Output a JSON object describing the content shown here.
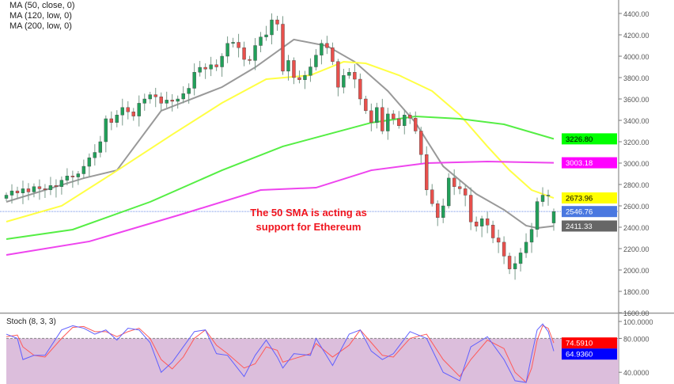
{
  "legend": [
    "MA (50, close, 0)",
    "MA (120, low, 0)",
    "MA (200, low, 0)"
  ],
  "annotation": [
    "The 50 SMA is acting as",
    "support for Ethereum"
  ],
  "stoch_title": "Stoch (8, 3, 3)",
  "colors": {
    "up": "#21a05a",
    "down": "#e8504c",
    "ma_gray": "#999999",
    "ma_yellow": "#ffff44",
    "ma_green": "#55ee44",
    "ma_magenta": "#ee44ee",
    "stoch_k": "#6060ff",
    "stoch_d": "#ff5a5a",
    "stoch_band": "#dcbedc",
    "last_price_line": "#6d8fe6"
  },
  "chart_data": [
    {
      "type": "candlestick",
      "ylim": [
        1600,
        4400
      ],
      "yticks": [
        "4400.00",
        "4200.00",
        "4000.00",
        "3800.00",
        "3600.00",
        "3400.00",
        "3200.00",
        "3000.00",
        "2800.00",
        "2600.00",
        "2400.00",
        "2200.00",
        "2000.00",
        "1800.00",
        "1600.00"
      ],
      "closes": [
        2700,
        2740,
        2720,
        2760,
        2730,
        2780,
        2760,
        2750,
        2790,
        2780,
        2840,
        2880,
        2870,
        2900,
        2970,
        3050,
        3100,
        3200,
        3415,
        3380,
        3450,
        3520,
        3480,
        3440,
        3560,
        3600,
        3640,
        3620,
        3560,
        3590,
        3578,
        3600,
        3650,
        3700,
        3850,
        3896,
        3880,
        3920,
        3900,
        4000,
        4120,
        4130,
        4080,
        3970,
        3960,
        4100,
        4180,
        4200,
        4340,
        4300,
        3860,
        3960,
        3800,
        3780,
        3820,
        3900,
        4010,
        4120,
        4080,
        3950,
        3710,
        3820,
        3850,
        3785,
        3600,
        3490,
        3380,
        3520,
        3300,
        3460,
        3415,
        3350,
        3450,
        3420,
        3300,
        3080,
        2750,
        2620,
        2490,
        2600,
        2860,
        2780,
        2760,
        2700,
        2450,
        2410,
        2480,
        2420,
        2300,
        2260,
        2130,
        2010,
        2060,
        2160,
        2260,
        2380,
        2640,
        2700,
        2700,
        2546.76
      ],
      "series": [
        {
          "name": "MA (50, close, 0)",
          "color": "ma_gray",
          "points": [
            [
              0,
              2637
            ],
            [
              14,
              2859
            ],
            [
              20,
              2933
            ],
            [
              28,
              3489
            ],
            [
              39,
              3711
            ],
            [
              45,
              3896
            ],
            [
              52,
              4156
            ],
            [
              58,
              4096
            ],
            [
              63,
              3948
            ],
            [
              69,
              3674
            ],
            [
              74,
              3378
            ],
            [
              79,
              2970
            ],
            [
              85,
              2711
            ],
            [
              90,
              2563
            ],
            [
              94,
              2415
            ],
            [
              96,
              2393
            ],
            [
              99,
              2411.33
            ]
          ],
          "last": "2411.33"
        },
        {
          "name": "MA (120, low, 0)",
          "color": "ma_yellow",
          "points": [
            [
              0,
              2452
            ],
            [
              10,
              2600
            ],
            [
              19,
              2896
            ],
            [
              30,
              3267
            ],
            [
              39,
              3563
            ],
            [
              47,
              3785
            ],
            [
              55,
              3822
            ],
            [
              61,
              3948
            ],
            [
              65,
              3933
            ],
            [
              71,
              3822
            ],
            [
              77,
              3674
            ],
            [
              82,
              3452
            ],
            [
              87,
              3156
            ],
            [
              91,
              2933
            ],
            [
              95,
              2748
            ],
            [
              99,
              2673.96
            ]
          ],
          "last": "2673.96"
        },
        {
          "name": "MA (200, low, 0)",
          "color": "ma_green",
          "points": [
            [
              0,
              2289
            ],
            [
              12,
              2378
            ],
            [
              26,
              2637
            ],
            [
              39,
              2933
            ],
            [
              50,
              3156
            ],
            [
              58,
              3267
            ],
            [
              66,
              3378
            ],
            [
              74,
              3437
            ],
            [
              82,
              3415
            ],
            [
              90,
              3363
            ],
            [
              99,
              3226.8
            ]
          ],
          "last": "3226.80"
        },
        {
          "name": "",
          "color": "ma_magenta",
          "points": [
            [
              0,
              2141
            ],
            [
              15,
              2267
            ],
            [
              32,
              2526
            ],
            [
              46,
              2748
            ],
            [
              56,
              2770
            ],
            [
              66,
              2933
            ],
            [
              76,
              3000
            ],
            [
              87,
              3015
            ],
            [
              99,
              3003.18
            ]
          ],
          "last": "3003.18"
        }
      ],
      "last_price": "2546.76"
    },
    {
      "type": "line",
      "title": "Stoch (8, 3, 3)",
      "ylim": [
        25,
        100
      ],
      "yticks": [
        "100.0000",
        "80.0000",
        "40.0000"
      ],
      "band": [
        20,
        80
      ],
      "x": [
        0,
        2,
        3,
        5,
        7,
        10,
        12,
        14,
        16,
        18,
        20,
        22,
        24,
        26,
        28,
        30,
        32,
        34,
        36,
        38,
        40,
        43,
        45,
        47,
        49,
        50,
        52,
        55,
        56,
        59,
        62,
        64,
        66,
        68,
        70,
        73,
        76,
        79,
        82,
        84,
        87,
        90,
        92,
        94,
        95,
        96,
        97,
        98,
        99
      ],
      "k": [
        85,
        80,
        55,
        60,
        60,
        90,
        95,
        92,
        85,
        90,
        78,
        92,
        90,
        75,
        40,
        52,
        70,
        88,
        90,
        62,
        60,
        35,
        60,
        78,
        58,
        45,
        62,
        60,
        80,
        48,
        85,
        90,
        65,
        55,
        62,
        88,
        80,
        40,
        30,
        70,
        82,
        55,
        30,
        28,
        60,
        90,
        97,
        88,
        64.936
      ],
      "d": [
        82,
        84,
        70,
        60,
        58,
        80,
        93,
        94,
        88,
        88,
        82,
        88,
        92,
        80,
        55,
        44,
        58,
        80,
        90,
        72,
        62,
        45,
        50,
        70,
        66,
        52,
        56,
        62,
        74,
        58,
        72,
        90,
        75,
        60,
        58,
        80,
        85,
        55,
        35,
        55,
        78,
        68,
        40,
        28,
        45,
        78,
        95,
        92,
        74.591
      ],
      "last_k": "64.9360",
      "last_d": "74.5910"
    }
  ]
}
